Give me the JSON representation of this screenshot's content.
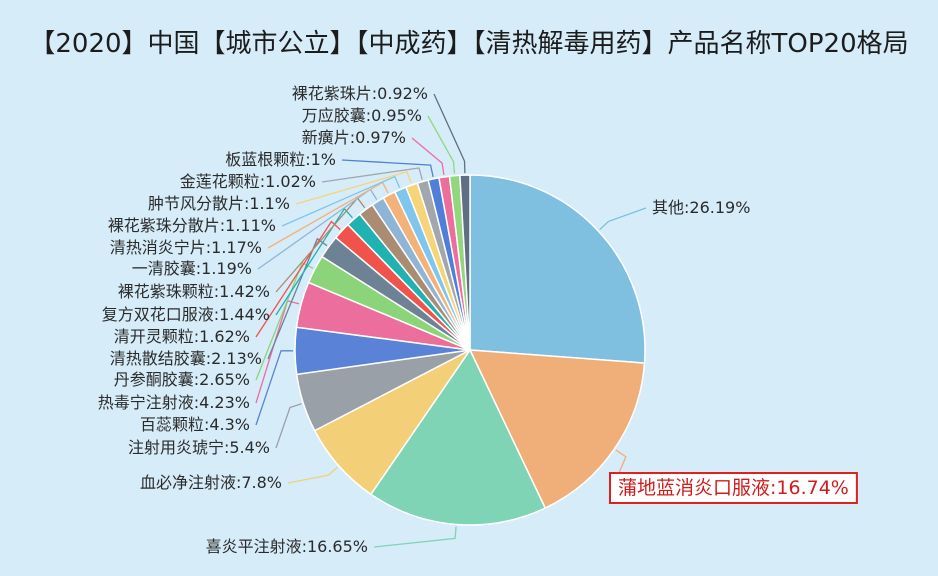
{
  "chart_data": {
    "type": "pie",
    "title": "【2020】中国【城市公立】【中成药】【清热解毒用药】产品名称TOP20格局",
    "unit": "%",
    "highlight": "蒲地蓝消炎口服液",
    "slices": [
      {
        "name": "其他",
        "value": 26.19,
        "label": "其他:26.19%",
        "color": "#7fbfe0"
      },
      {
        "name": "蒲地蓝消炎口服液",
        "value": 16.74,
        "label": "蒲地蓝消炎口服液:16.74%",
        "color": "#f0ae78"
      },
      {
        "name": "喜炎平注射液",
        "value": 16.65,
        "label": "喜炎平注射液:16.65%",
        "color": "#7fd4b6"
      },
      {
        "name": "血必净注射液",
        "value": 7.8,
        "label": "血必净注射液:7.8%",
        "color": "#f3d078"
      },
      {
        "name": "注射用炎琥宁",
        "value": 5.4,
        "label": "注射用炎琥宁:5.4%",
        "color": "#9aa0a8"
      },
      {
        "name": "百蕊颗粒",
        "value": 4.3,
        "label": "百蕊颗粒:4.3%",
        "color": "#5a83d8"
      },
      {
        "name": "热毒宁注射液",
        "value": 4.23,
        "label": "热毒宁注射液:4.23%",
        "color": "#ec6e9c"
      },
      {
        "name": "丹参酮胶囊",
        "value": 2.65,
        "label": "丹参酮胶囊:2.65%",
        "color": "#8cd47a"
      },
      {
        "name": "清热散结胶囊",
        "value": 2.13,
        "label": "清热散结胶囊:2.13%",
        "color": "#6e8296"
      },
      {
        "name": "清开灵颗粒",
        "value": 1.62,
        "label": "清开灵颗粒:1.62%",
        "color": "#f0524c"
      },
      {
        "name": "复方双花口服液",
        "value": 1.44,
        "label": "复方双花口服液:1.44%",
        "color": "#1fb2b0"
      },
      {
        "name": "裸花紫珠颗粒",
        "value": 1.42,
        "label": "裸花紫珠颗粒:1.42%",
        "color": "#a98c72"
      },
      {
        "name": "一清胶囊",
        "value": 1.19,
        "label": "一清胶囊:1.19%",
        "color": "#8fb5d6"
      },
      {
        "name": "清热消炎宁片",
        "value": 1.17,
        "label": "清热消炎宁片:1.17%",
        "color": "#f2b27a"
      },
      {
        "name": "裸花紫珠分散片",
        "value": 1.11,
        "label": "裸花紫珠分散片:1.11%",
        "color": "#7fc6ec"
      },
      {
        "name": "肿节风分散片",
        "value": 1.1,
        "label": "肿节风分散片:1.1%",
        "color": "#f5d57a"
      },
      {
        "name": "金莲花颗粒",
        "value": 1.02,
        "label": "金莲花颗粒:1.02%",
        "color": "#a2a7ae"
      },
      {
        "name": "板蓝根颗粒",
        "value": 1.0,
        "label": "板蓝根颗粒:1%",
        "color": "#4f7fd8"
      },
      {
        "name": "新癀片",
        "value": 0.97,
        "label": "新癀片:0.97%",
        "color": "#ec6e9c"
      },
      {
        "name": "万应胶囊",
        "value": 0.95,
        "label": "万应胶囊:0.95%",
        "color": "#92d67e"
      },
      {
        "name": "裸花紫珠片",
        "value": 0.92,
        "label": "裸花紫珠片:0.92%",
        "color": "#5e6f84"
      }
    ]
  }
}
